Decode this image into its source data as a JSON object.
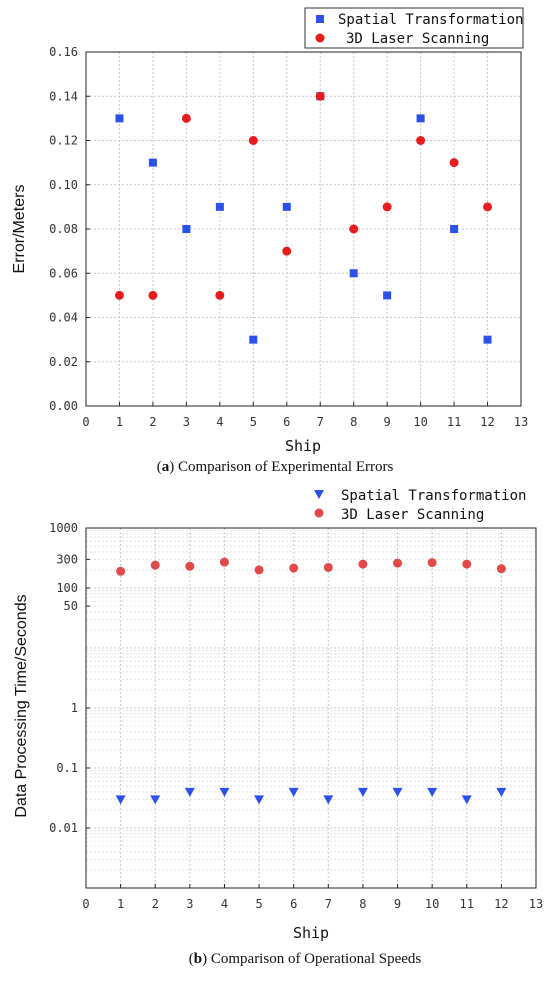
{
  "colors": {
    "blue": "#2a52e8",
    "red": "#e81c1c",
    "red_light": "#e04a4a"
  },
  "chart_data": [
    {
      "type": "scatter",
      "caption_label": "a",
      "caption_text": "Comparison of Experimental Errors",
      "xlabel": "Ship",
      "ylabel": "Error/Meters",
      "xlim": [
        0,
        13
      ],
      "ylim": [
        0,
        0.16
      ],
      "xticks": [
        "0",
        "1",
        "2",
        "3",
        "4",
        "5",
        "6",
        "7",
        "8",
        "9",
        "10",
        "11",
        "12",
        "13"
      ],
      "yticks": [
        "0.00",
        "0.02",
        "0.04",
        "0.06",
        "0.08",
        "0.10",
        "0.12",
        "0.14",
        "0.16"
      ],
      "ytick_values": [
        0,
        0.02,
        0.04,
        0.06,
        0.08,
        0.1,
        0.12,
        0.14,
        0.16
      ],
      "grid": true,
      "legend_position": "top-right",
      "series": [
        {
          "name": "Spatial Transformation",
          "marker": "square",
          "color": "#2a52e8",
          "x": [
            1,
            2,
            3,
            4,
            5,
            6,
            7,
            8,
            9,
            10,
            11,
            12
          ],
          "y": [
            0.13,
            0.11,
            0.08,
            0.09,
            0.03,
            0.09,
            0.14,
            0.06,
            0.05,
            0.13,
            0.08,
            0.03
          ]
        },
        {
          "name": "3D Laser Scanning",
          "marker": "circle",
          "color": "#e81c1c",
          "x": [
            1,
            2,
            3,
            4,
            5,
            6,
            7,
            8,
            9,
            10,
            11,
            12
          ],
          "y": [
            0.05,
            0.05,
            0.13,
            0.05,
            0.12,
            0.07,
            0.14,
            0.08,
            0.09,
            0.12,
            0.11,
            0.09
          ]
        }
      ]
    },
    {
      "type": "scatter",
      "caption_label": "b",
      "caption_text": "Comparison of Operational Speeds",
      "xlabel": "Ship",
      "ylabel": "Data Processing Time/Seconds",
      "xlim": [
        0,
        13
      ],
      "ylim": [
        0.001,
        1000
      ],
      "yscale": "log",
      "xticks": [
        "0",
        "1",
        "2",
        "3",
        "4",
        "5",
        "6",
        "7",
        "8",
        "9",
        "10",
        "11",
        "12",
        "13"
      ],
      "yticks": [
        "0.01",
        "0.1",
        "1",
        "50",
        "100",
        "300",
        "1000"
      ],
      "ytick_values": [
        0.01,
        0.1,
        1,
        50,
        100,
        300,
        1000
      ],
      "grid": true,
      "legend_position": "top-right",
      "series": [
        {
          "name": "Spatial Transformation",
          "marker": "triangle-down",
          "color": "#2a52e8",
          "x": [
            1,
            2,
            3,
            4,
            5,
            6,
            7,
            8,
            9,
            10,
            11,
            12
          ],
          "y": [
            0.03,
            0.03,
            0.04,
            0.04,
            0.03,
            0.04,
            0.03,
            0.04,
            0.04,
            0.04,
            0.03,
            0.04
          ]
        },
        {
          "name": "3D Laser Scanning",
          "marker": "circle",
          "color": "#e04a4a",
          "x": [
            1,
            2,
            3,
            4,
            5,
            6,
            7,
            8,
            9,
            10,
            11,
            12
          ],
          "y": [
            190,
            240,
            230,
            270,
            200,
            215,
            220,
            250,
            260,
            265,
            250,
            210
          ]
        }
      ]
    }
  ]
}
